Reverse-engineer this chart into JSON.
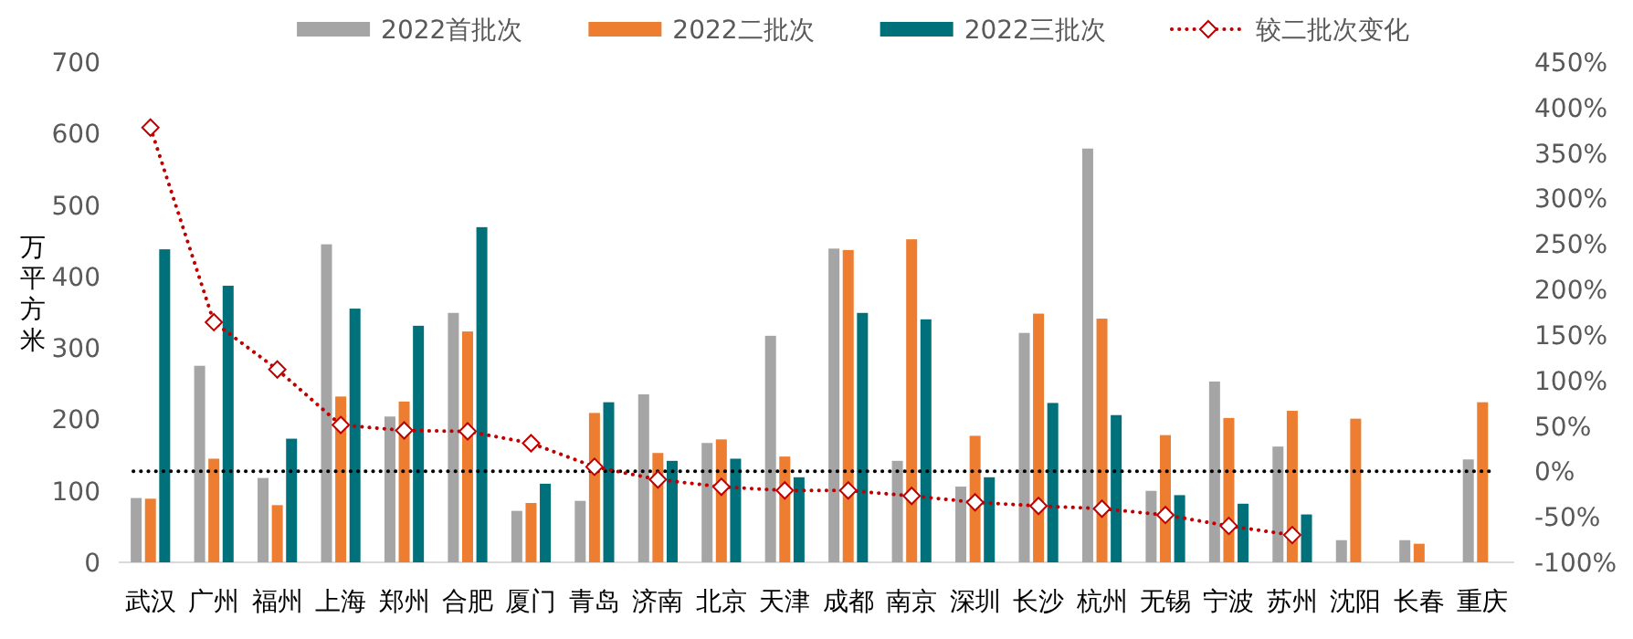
{
  "chart_data": {
    "type": "bar",
    "legend": "top",
    "ylabel": "万平方米",
    "categories": [
      "武汉",
      "广州",
      "福州",
      "上海",
      "郑州",
      "合肥",
      "厦门",
      "青岛",
      "济南",
      "北京",
      "天津",
      "成都",
      "南京",
      "深圳",
      "长沙",
      "杭州",
      "无锡",
      "宁波",
      "苏州",
      "沈阳",
      "长春",
      "重庆"
    ],
    "series": [
      {
        "name": "2022首批次",
        "color": "#a5a5a5",
        "values": [
          90,
          275,
          118,
          445,
          204,
          349,
          72,
          86,
          235,
          167,
          317,
          439,
          142,
          106,
          321,
          579,
          100,
          253,
          162,
          31,
          31,
          144
        ]
      },
      {
        "name": "2022二批次",
        "color": "#ed7d31",
        "values": [
          89,
          145,
          80,
          232,
          225,
          323,
          83,
          209,
          153,
          172,
          148,
          437,
          452,
          177,
          348,
          341,
          178,
          202,
          212,
          201,
          26,
          224
        ]
      },
      {
        "name": "2022三批次",
        "color": "#00707a",
        "values": [
          438,
          387,
          173,
          355,
          331,
          469,
          110,
          224,
          142,
          145,
          119,
          349,
          340,
          119,
          223,
          206,
          94,
          82,
          67,
          null,
          null,
          null
        ]
      },
      {
        "name": "较二批次变化",
        "type": "line",
        "axis": "y2",
        "color": "#c00000",
        "marker": "diamond",
        "line_style": "dotted",
        "values": [
          378,
          164,
          112,
          51,
          45,
          44,
          31,
          5,
          -9,
          -17,
          -21,
          -21,
          -27,
          -34,
          -38,
          -41,
          -48,
          -60,
          -70,
          null,
          null,
          null
        ]
      }
    ],
    "ylim": [
      0,
      700
    ],
    "yticks": [
      0,
      100,
      200,
      300,
      400,
      500,
      600,
      700
    ],
    "y2lim": [
      -100,
      450
    ],
    "y2ticks": [
      {
        "value": -100,
        "label": "-100%"
      },
      {
        "value": -50,
        "label": "-50%"
      },
      {
        "value": 0,
        "label": "0%"
      },
      {
        "value": 50,
        "label": "50%"
      },
      {
        "value": 100,
        "label": "100%"
      },
      {
        "value": 150,
        "label": "150%"
      },
      {
        "value": 200,
        "label": "200%"
      },
      {
        "value": 250,
        "label": "250%"
      },
      {
        "value": 300,
        "label": "300%"
      },
      {
        "value": 350,
        "label": "350%"
      },
      {
        "value": 400,
        "label": "400%"
      },
      {
        "value": 450,
        "label": "450%"
      }
    ],
    "ref_lines": [
      {
        "axis": "y2",
        "value": 0,
        "color": "#000000",
        "line_style": "dotted"
      }
    ]
  }
}
